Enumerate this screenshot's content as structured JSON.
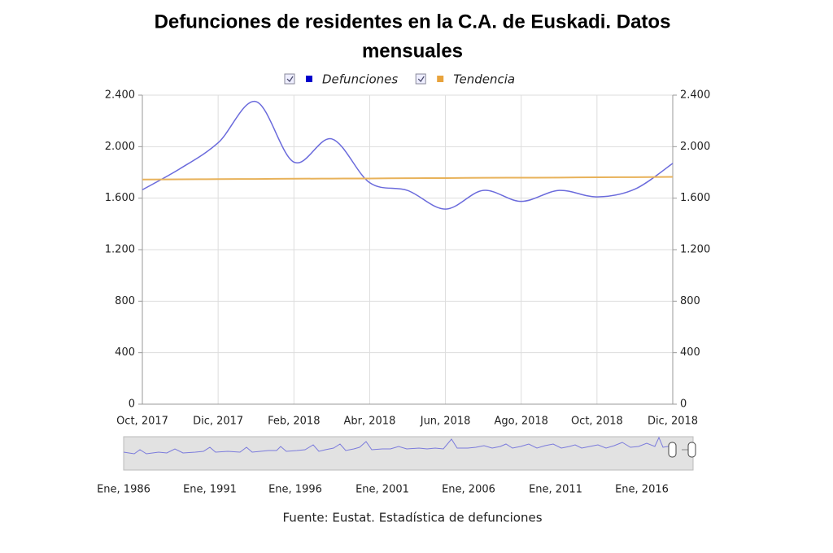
{
  "chart_data": {
    "type": "line",
    "title": [
      "Defunciones de residentes en la C.A. de Euskadi. Datos",
      "mensuales"
    ],
    "categories": [
      "Oct, 2017",
      null,
      "Dic, 2017",
      null,
      "Feb, 2018",
      null,
      "Abr, 2018",
      null,
      "Jun, 2018",
      null,
      "Ago, 2018",
      null,
      "Oct, 2018",
      null,
      "Dic, 2018"
    ],
    "series": [
      {
        "name": "Defunciones",
        "color": "#6b6bdc",
        "legend_color": "#0000cc",
        "values": [
          1665,
          1830,
          2030,
          2350,
          1880,
          2060,
          1720,
          1660,
          1515,
          1660,
          1575,
          1660,
          1610,
          1670,
          1870
        ]
      },
      {
        "name": "Tendencia",
        "color": "#e8b25a",
        "legend_color": "#e8a33c",
        "values": [
          1745,
          1746,
          1748,
          1749,
          1751,
          1752,
          1753,
          1755,
          1756,
          1758,
          1759,
          1760,
          1762,
          1763,
          1765
        ]
      }
    ],
    "ylim": [
      0,
      2400
    ],
    "yticks": [
      0,
      400,
      800,
      {
        "value": 1200,
        "label": "1.200"
      },
      {
        "value": 1600,
        "label": "1.600"
      },
      {
        "value": 2000,
        "label": "2.000"
      },
      {
        "value": 2400,
        "label": "2.400"
      }
    ],
    "y2lim": [
      0,
      2400
    ],
    "y2ticks": [
      0,
      400,
      800,
      {
        "value": 1200,
        "label": "1.200"
      },
      {
        "value": 1600,
        "label": "1.600"
      },
      {
        "value": 2000,
        "label": "2.000"
      },
      {
        "value": 2400,
        "label": "2.400"
      }
    ],
    "grid": true,
    "legend": "top",
    "navigator_labels": [
      "Ene, 1986",
      "Ene, 1991",
      "Ene, 1996",
      "Ene, 2001",
      "Ene, 2006",
      "Ene, 2011",
      "Ene, 2016"
    ],
    "source": "Fuente: Eustat. Estadística de defunciones"
  }
}
